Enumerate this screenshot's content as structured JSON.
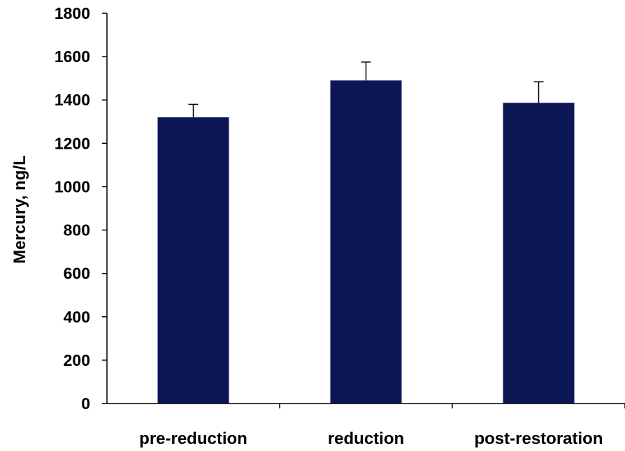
{
  "chart_data": {
    "type": "bar",
    "categories": [
      "pre-reduction",
      "reduction",
      "post-restoration"
    ],
    "values": [
      1320,
      1490,
      1387
    ],
    "error_bars": [
      60,
      85,
      97
    ],
    "ylabel": "Mercury, ng/L",
    "ylim": [
      0,
      1800
    ],
    "yticks": [
      "0",
      "200",
      "400",
      "600",
      "800",
      "1000",
      "1200",
      "1400",
      "1600",
      "1800"
    ],
    "grid": false,
    "legend": "none"
  },
  "colors": {
    "bar": "#0d1654",
    "axis": "#000000"
  }
}
